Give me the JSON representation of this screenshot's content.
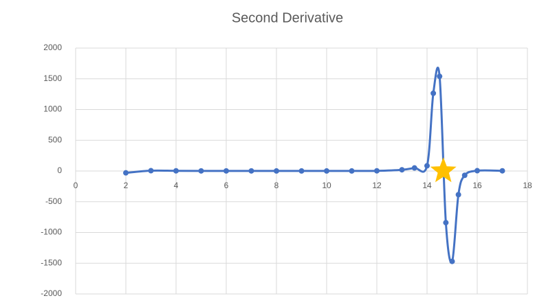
{
  "chart_data": {
    "type": "scatter",
    "title": "Second Derivative",
    "x": [
      2,
      3,
      4,
      5,
      6,
      7,
      8,
      9,
      10,
      11,
      12,
      13,
      13.5,
      14,
      14.25,
      14.5,
      14.75,
      15,
      15.25,
      15.5,
      16,
      17
    ],
    "series": [
      {
        "color": "#4472c4",
        "values": [
          -30,
          5,
          3,
          2,
          2,
          2,
          1,
          1,
          1,
          1,
          3,
          20,
          50,
          85,
          1265,
          1540,
          -840,
          -1470,
          -385,
          -70,
          5,
          3
        ]
      }
    ],
    "highlight": {
      "x": 14.65,
      "y": 0,
      "color": "#ffc000"
    },
    "xlim": [
      0,
      18
    ],
    "xticks": [
      0,
      2,
      4,
      6,
      8,
      10,
      12,
      14,
      16,
      18
    ],
    "ylim": [
      -2000,
      2000
    ],
    "yticks": [
      -2000,
      -1500,
      -1000,
      -500,
      0,
      500,
      1000,
      1500,
      2000
    ],
    "grid": true,
    "smooth": true
  }
}
